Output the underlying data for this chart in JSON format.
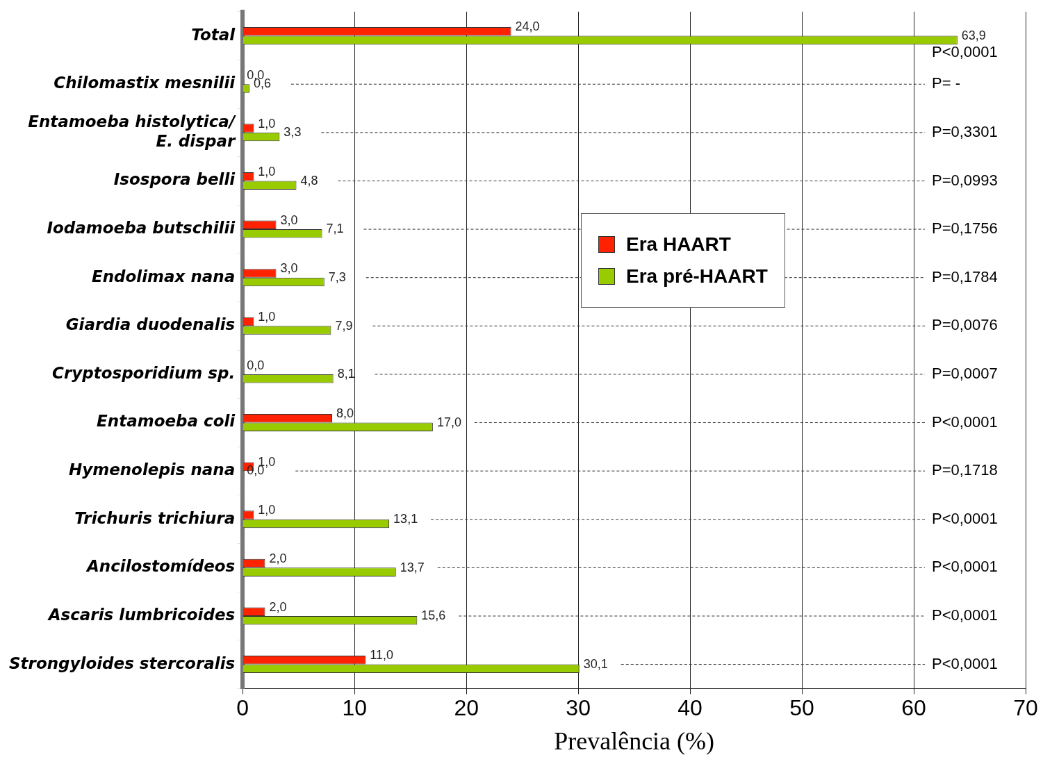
{
  "chart_data": {
    "type": "bar",
    "orientation": "horizontal",
    "xlabel": "Prevalência (%)",
    "categories": [
      "Total",
      "Chilomastix mesnilii",
      "Entamoeba histolytica/ E. dispar",
      "Isospora belli",
      "Iodamoeba butschilii",
      "Endolimax nana",
      "Giardia duodenalis",
      "Cryptosporidium sp.",
      "Entamoeba coli",
      "Hymenolepis nana",
      "Trichuris trichiura",
      "Ancilostomídeos",
      "Ascaris lumbricoides",
      "Strongyloides stercoralis"
    ],
    "series": [
      {
        "name": "Era HAART",
        "color": "#ff2200",
        "values": [
          24.0,
          0.0,
          1.0,
          1.0,
          3.0,
          3.0,
          1.0,
          0.0,
          8.0,
          1.0,
          1.0,
          2.0,
          2.0,
          11.0
        ],
        "value_labels": [
          "24,0",
          "0,0",
          "1,0",
          "1,0",
          "3,0",
          "3,0",
          "1,0",
          "0,0",
          "8,0",
          "1,0",
          "1,0",
          "2,0",
          "2,0",
          "11,0"
        ]
      },
      {
        "name": "Era pré-HAART",
        "color": "#99cc00",
        "values": [
          63.9,
          0.6,
          3.3,
          4.8,
          7.1,
          7.3,
          7.9,
          8.1,
          17.0,
          0.0,
          13.1,
          13.7,
          15.6,
          30.1
        ],
        "value_labels": [
          "63,9",
          "0,6",
          "3,3",
          "4,8",
          "7,1",
          "7,3",
          "7,9",
          "8,1",
          "17,0",
          "0,0",
          "13,1",
          "13,7",
          "15,6",
          "30,1"
        ]
      }
    ],
    "xlim": [
      0,
      70
    ],
    "xticks": [
      0,
      10,
      20,
      30,
      40,
      50,
      60,
      70
    ],
    "grid": true,
    "legend": "top right",
    "annotations": [
      "P<0,0001",
      "P= -",
      "P=0,3301",
      "P=0,0993",
      "P=0,1756",
      "P=0,1784",
      "P=0,0076",
      "P=0,0007",
      "P<0,0001",
      "P=0,1718",
      "P<0,0001",
      "P<0,0001",
      "P<0,0001",
      "P<0,0001"
    ]
  }
}
